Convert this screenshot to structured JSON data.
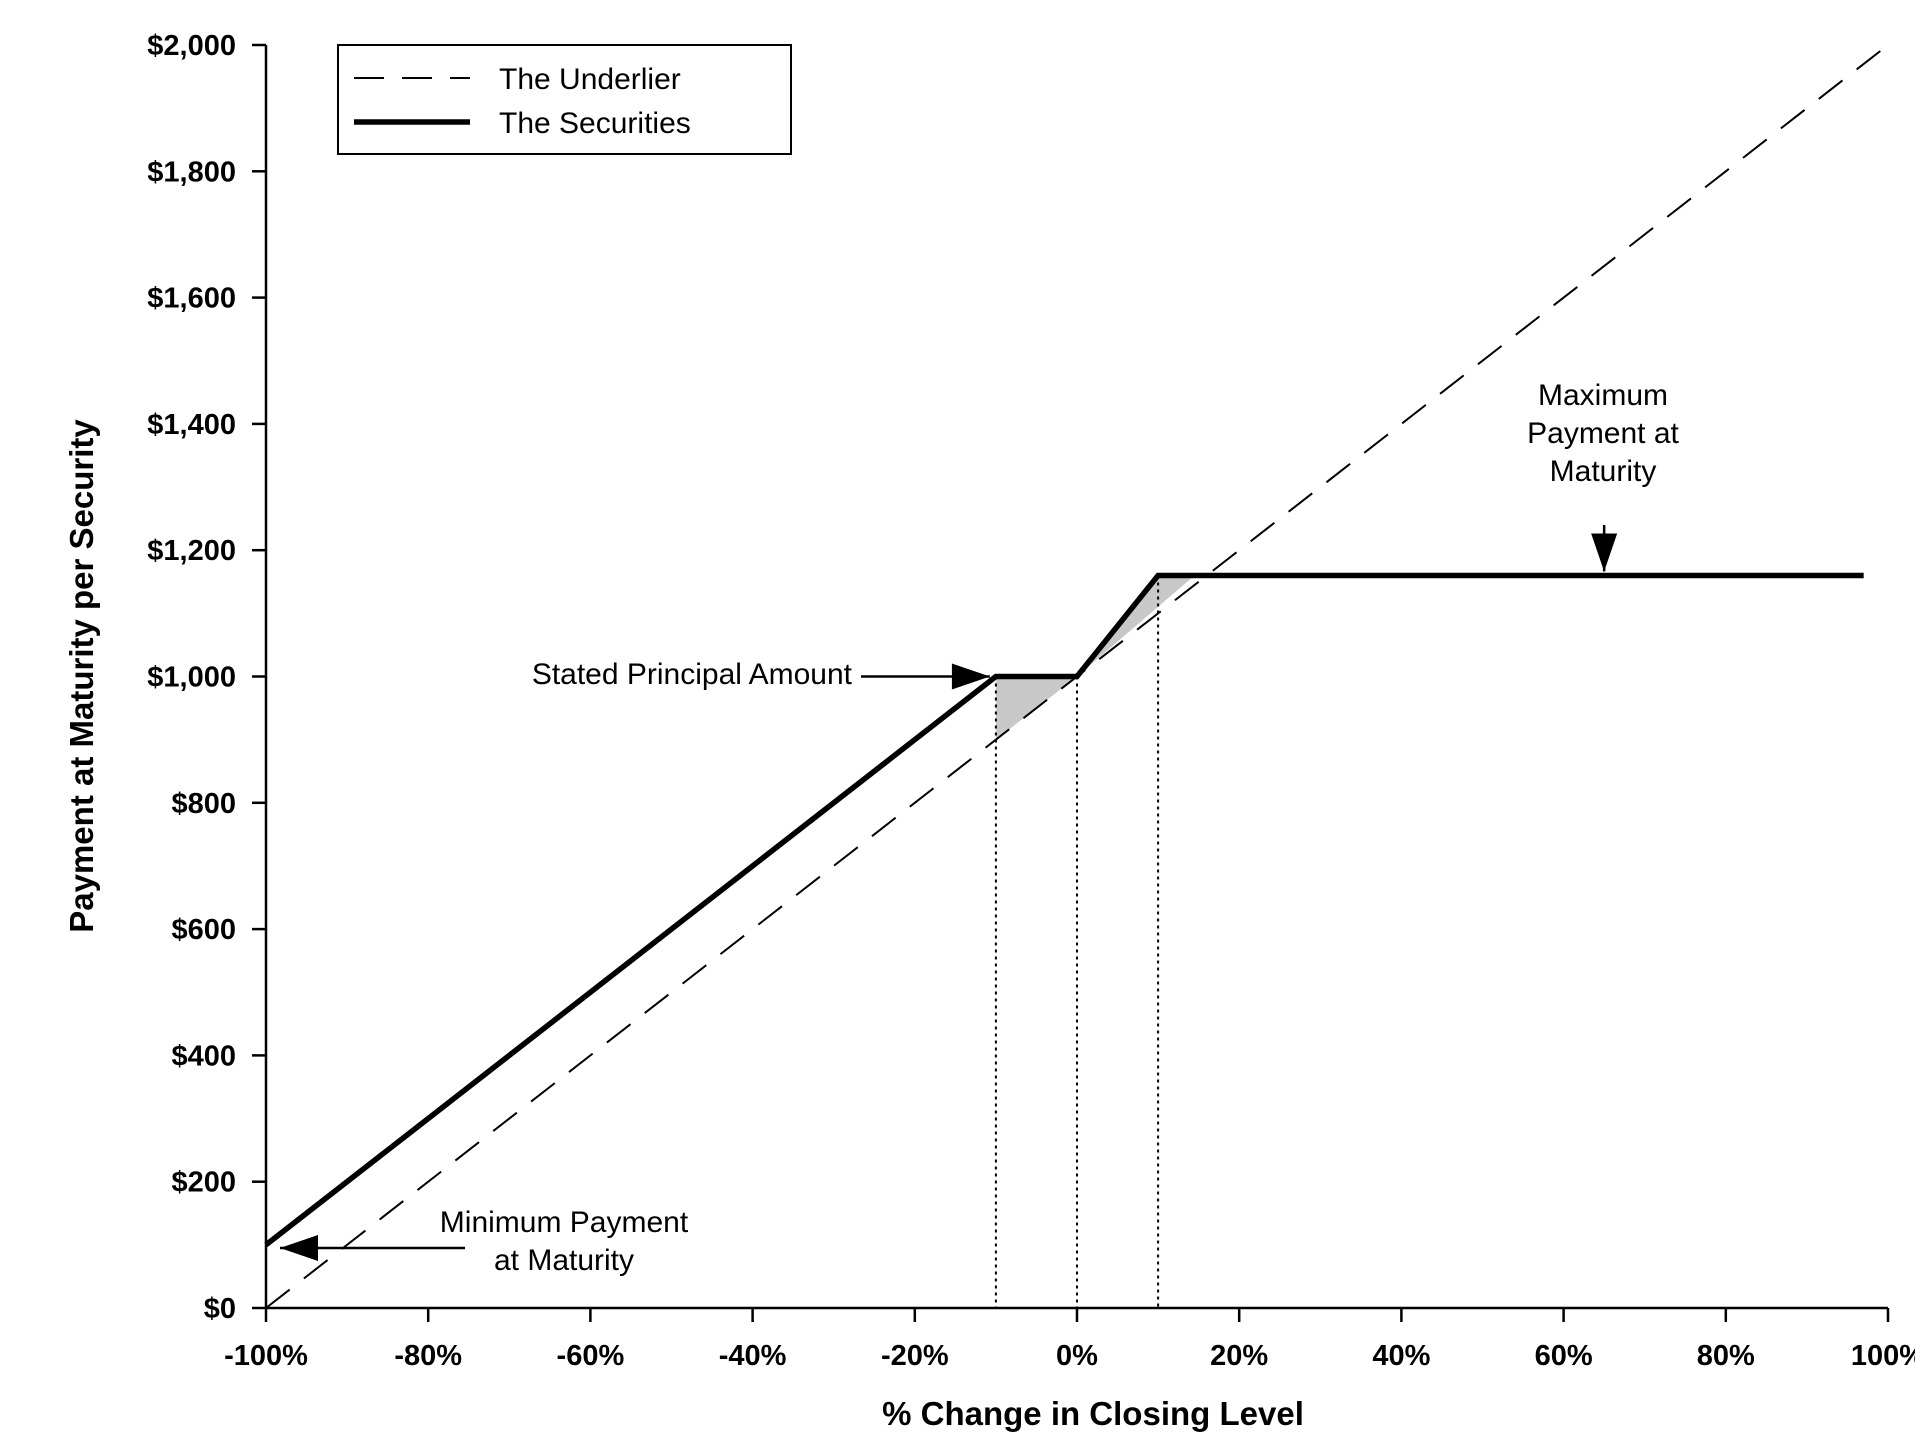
{
  "chart_data": {
    "type": "line",
    "xlabel": "% Change in Closing Level",
    "ylabel": "Payment at Maturity per Security",
    "xlim": [
      -100,
      100
    ],
    "ylim": [
      0,
      2000
    ],
    "x_tick_values": [
      -100,
      -80,
      -60,
      -40,
      -20,
      0,
      20,
      40,
      60,
      80,
      100
    ],
    "x_tick_labels": [
      "-100%",
      "-80%",
      "-60%",
      "-40%",
      "-20%",
      "0%",
      "20%",
      "40%",
      "60%",
      "80%",
      "100%"
    ],
    "y_tick_values": [
      0,
      200,
      400,
      600,
      800,
      1000,
      1200,
      1400,
      1600,
      1800,
      2000
    ],
    "y_tick_labels": [
      "$0",
      "$200",
      "$400",
      "$600",
      "$800",
      "$1,000",
      "$1,200",
      "$1,400",
      "$1,600",
      "$1,800",
      "$2,000"
    ],
    "grid": false,
    "legend_position": "top-left",
    "series": [
      {
        "name": "The Underlier",
        "style": "dashed",
        "color": "#000000",
        "x": [
          -100,
          100
        ],
        "y": [
          0,
          2000
        ]
      },
      {
        "name": "The Securities",
        "style": "solid-thick",
        "color": "#000000",
        "x": [
          -100,
          -10,
          0,
          10,
          97
        ],
        "y": [
          100,
          1000,
          1000,
          1160,
          1160
        ]
      }
    ],
    "shaded_regions": [
      {
        "color": "#c8c8c8",
        "x": [
          -10,
          0,
          -10
        ],
        "y": [
          1000,
          1000,
          900
        ]
      },
      {
        "color": "#c8c8c8",
        "x": [
          10,
          14.5,
          0
        ],
        "y": [
          1160,
          1160,
          1000
        ]
      }
    ],
    "reference_lines": [
      {
        "style": "dotted",
        "x": -10,
        "y_top": 1000
      },
      {
        "style": "dotted",
        "x": 0,
        "y_top": 1000
      },
      {
        "style": "dotted",
        "x": 10,
        "y_top": 1160
      }
    ],
    "annotations": [
      {
        "id": "stated",
        "lines": [
          "Stated Principal Amount"
        ],
        "arrow_to": [
          -10,
          1000
        ]
      },
      {
        "id": "maximum",
        "lines": [
          "Maximum",
          "Payment at",
          "Maturity"
        ],
        "arrow_to": [
          65,
          1160
        ]
      },
      {
        "id": "minimum",
        "lines": [
          "Minimum Payment",
          "at Maturity"
        ],
        "arrow_to": [
          -100,
          100
        ]
      }
    ]
  }
}
